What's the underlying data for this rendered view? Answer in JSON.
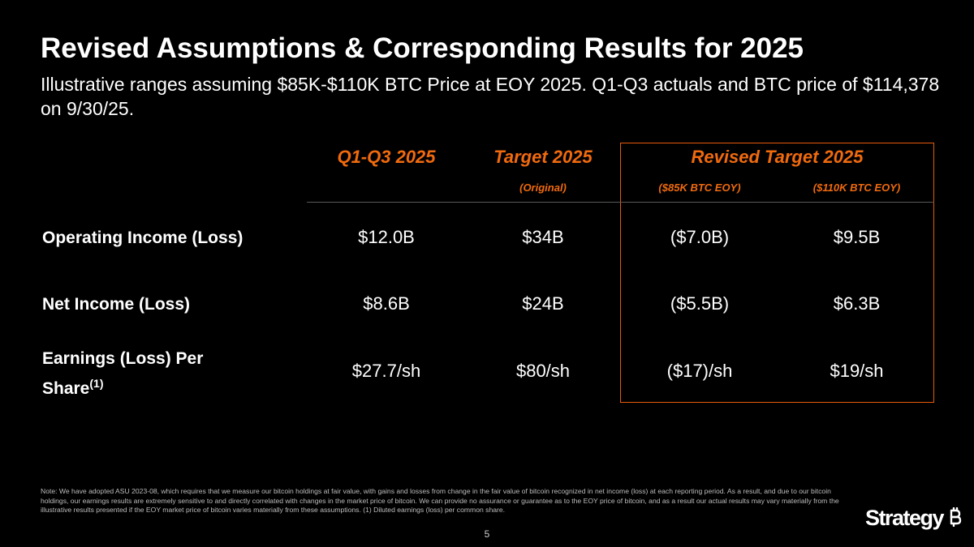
{
  "header": {
    "title": "Revised Assumptions & Corresponding Results for 2025",
    "subtitle": "Illustrative ranges assuming $85K-$110K BTC Price at EOY 2025. Q1-Q3 actuals and BTC price of $114,378 on 9/30/25."
  },
  "table": {
    "columns": [
      {
        "label": "Q1-Q3 2025",
        "sublabel": ""
      },
      {
        "label": "Target 2025",
        "sublabel": "(Original)"
      },
      {
        "label": "Revised Target 2025",
        "sublabels": [
          "($85K BTC EOY)",
          "($110K BTC EOY)"
        ]
      }
    ],
    "rows": [
      {
        "label": "Operating Income (Loss)",
        "superscript": "",
        "values": [
          "$12.0B",
          "$34B",
          "($7.0B)",
          "$9.5B"
        ]
      },
      {
        "label": "Net Income (Loss)",
        "superscript": "",
        "values": [
          "$8.6B",
          "$24B",
          "($5.5B)",
          "$6.3B"
        ]
      },
      {
        "label_line1": "Earnings (Loss) Per",
        "label_line2": "Share",
        "superscript": "(1)",
        "values": [
          "$27.7/sh",
          "$80/sh",
          "($17)/sh",
          "$19/sh"
        ]
      }
    ]
  },
  "footer": {
    "note": "Note: We have adopted ASU 2023-08, which requires that we measure our bitcoin holdings at fair value, with gains and losses from change in the fair value of bitcoin recognized in net income (loss) at each reporting period.  As a result, and due to our bitcoin holdings, our earnings results are extremely sensitive to and directly correlated with changes in the market price of bitcoin. We can provide no assurance or guarantee as to the EOY price of bitcoin, and as a result our actual results may vary materially from the illustrative results presented if the EOY market price of bitcoin varies materially from these assumptions. (1) Diluted earnings (loss) per common share.",
    "page_number": "5",
    "logo_text": "Strategy"
  },
  "colors": {
    "accent": "#f06a0e",
    "box_border": "#e8590c",
    "background": "#000000",
    "text": "#ffffff"
  }
}
